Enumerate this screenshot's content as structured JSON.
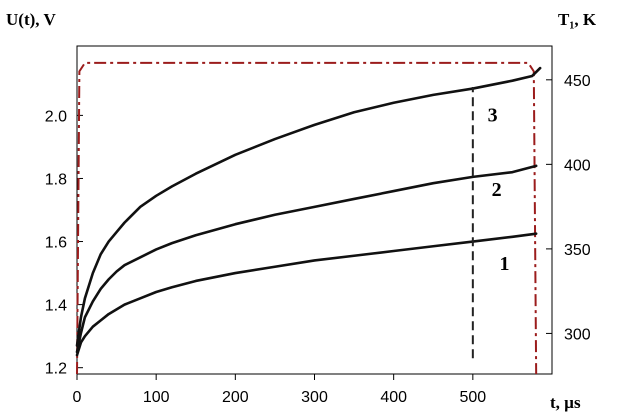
{
  "chart_data": {
    "type": "line",
    "ylabel_left": "U(t), V",
    "ylabel_right": "T₁, K",
    "xlabel": "t, µs",
    "xlim": [
      0,
      600
    ],
    "ylim_left": [
      1.18,
      2.22
    ],
    "ylim_right": [
      276,
      470
    ],
    "x_ticks": [
      0,
      100,
      200,
      300,
      400,
      500
    ],
    "y_left_ticks": [
      1.2,
      1.4,
      1.6,
      1.8,
      2.0
    ],
    "y_right_ticks": [
      300,
      350,
      400,
      450
    ],
    "series": [
      {
        "name": "1",
        "points": [
          [
            0,
            1.24
          ],
          [
            5,
            1.28
          ],
          [
            10,
            1.3
          ],
          [
            20,
            1.33
          ],
          [
            30,
            1.35
          ],
          [
            40,
            1.37
          ],
          [
            50,
            1.385
          ],
          [
            60,
            1.4
          ],
          [
            80,
            1.42
          ],
          [
            100,
            1.44
          ],
          [
            120,
            1.455
          ],
          [
            150,
            1.475
          ],
          [
            200,
            1.5
          ],
          [
            250,
            1.52
          ],
          [
            300,
            1.54
          ],
          [
            350,
            1.555
          ],
          [
            400,
            1.57
          ],
          [
            450,
            1.585
          ],
          [
            500,
            1.6
          ],
          [
            550,
            1.615
          ],
          [
            580,
            1.625
          ]
        ]
      },
      {
        "name": "2",
        "points": [
          [
            0,
            1.25
          ],
          [
            5,
            1.31
          ],
          [
            10,
            1.36
          ],
          [
            20,
            1.41
          ],
          [
            30,
            1.45
          ],
          [
            40,
            1.48
          ],
          [
            50,
            1.505
          ],
          [
            60,
            1.525
          ],
          [
            80,
            1.55
          ],
          [
            100,
            1.575
          ],
          [
            120,
            1.595
          ],
          [
            150,
            1.62
          ],
          [
            200,
            1.655
          ],
          [
            250,
            1.685
          ],
          [
            300,
            1.71
          ],
          [
            350,
            1.735
          ],
          [
            400,
            1.76
          ],
          [
            450,
            1.785
          ],
          [
            500,
            1.805
          ],
          [
            550,
            1.82
          ],
          [
            580,
            1.84
          ]
        ]
      },
      {
        "name": "3",
        "points": [
          [
            0,
            1.27
          ],
          [
            5,
            1.36
          ],
          [
            10,
            1.42
          ],
          [
            20,
            1.5
          ],
          [
            30,
            1.56
          ],
          [
            40,
            1.6
          ],
          [
            50,
            1.63
          ],
          [
            60,
            1.66
          ],
          [
            80,
            1.71
          ],
          [
            100,
            1.745
          ],
          [
            120,
            1.775
          ],
          [
            150,
            1.815
          ],
          [
            200,
            1.875
          ],
          [
            250,
            1.925
          ],
          [
            300,
            1.97
          ],
          [
            350,
            2.01
          ],
          [
            400,
            2.04
          ],
          [
            450,
            2.065
          ],
          [
            500,
            2.085
          ],
          [
            550,
            2.11
          ],
          [
            575,
            2.125
          ],
          [
            585,
            2.15
          ]
        ]
      }
    ],
    "temperature_profile": {
      "points": [
        [
          0,
          276
        ],
        [
          3,
          455
        ],
        [
          10,
          460
        ],
        [
          570,
          460
        ],
        [
          577,
          455
        ],
        [
          580,
          276
        ]
      ]
    },
    "vertical_marker_x": 500,
    "marker_y_range": [
      1.23,
      2.09
    ],
    "curve_labels": [
      {
        "text": "1",
        "x": 540,
        "y": 1.51
      },
      {
        "text": "2",
        "x": 530,
        "y": 1.745
      },
      {
        "text": "3",
        "x": 525,
        "y": 1.98
      }
    ]
  }
}
